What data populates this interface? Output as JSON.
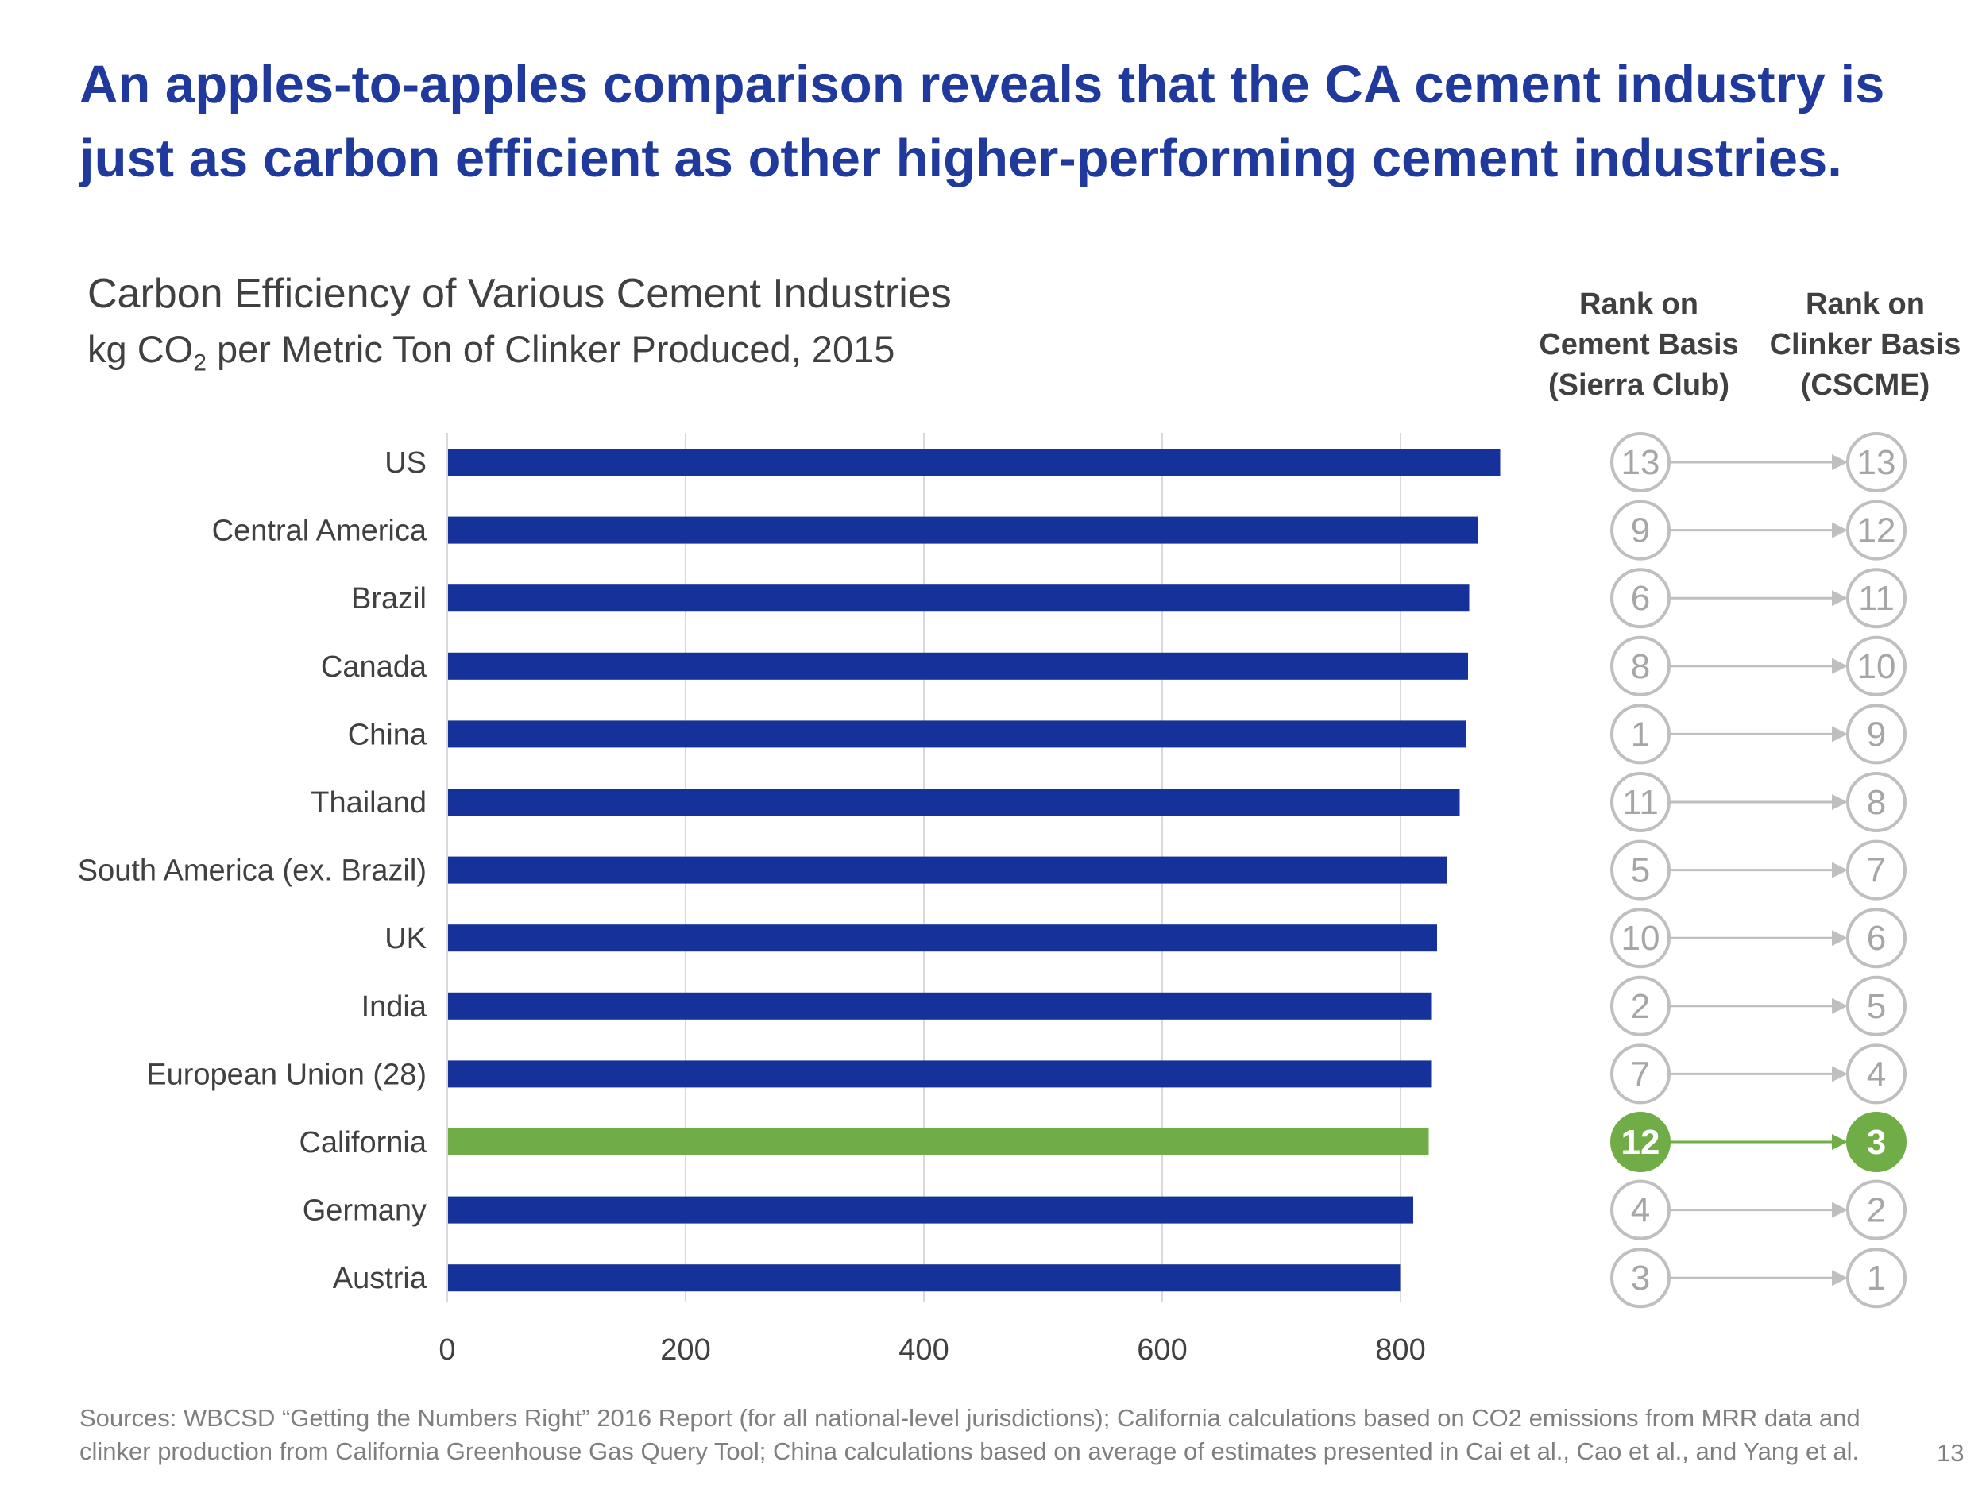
{
  "headline": {
    "line1": "An apples-to-apples comparison reveals that the CA cement industry is",
    "line2": "just as carbon efficient as other higher-performing cement industries."
  },
  "chart_data": {
    "type": "bar",
    "orientation": "horizontal",
    "title": "Carbon Efficiency of Various Cement Industries",
    "subtitle_prefix": "kg CO",
    "subtitle_sub": "2",
    "subtitle_suffix": " per Metric Ton of Clinker Produced, 2015",
    "categories": [
      "US",
      "Central America",
      "Brazil",
      "Canada",
      "China",
      "Thailand",
      "South America (ex. Brazil)",
      "UK",
      "India",
      "European Union (28)",
      "California",
      "Germany",
      "Austria"
    ],
    "values": [
      883,
      864,
      857,
      856,
      854,
      849,
      838,
      830,
      825,
      825,
      823,
      810,
      799
    ],
    "highlight_category": "California",
    "x_ticks": [
      0,
      200,
      400,
      600,
      800
    ],
    "xlim": [
      0,
      900
    ],
    "grid": true,
    "legend": "none",
    "ranks": {
      "cement_header": [
        "Rank on",
        "Cement Basis",
        "(Sierra Club)"
      ],
      "clinker_header": [
        "Rank on",
        "Clinker Basis",
        "(CSCME)"
      ],
      "cement_basis": [
        13,
        9,
        6,
        8,
        1,
        11,
        5,
        10,
        2,
        7,
        12,
        4,
        3
      ],
      "clinker_basis": [
        13,
        12,
        11,
        10,
        9,
        8,
        7,
        6,
        5,
        4,
        3,
        2,
        1
      ]
    }
  },
  "colors": {
    "headline": "#1F3A9C",
    "bar": "#15329A",
    "highlight": "#70AD47",
    "text": "#404040",
    "muted": "#7F7F7F",
    "grid": "#D9D9D9",
    "rank_outline": "#BFBFBF",
    "rank_text": "#A6A6A6"
  },
  "footer": {
    "sources_line1": "Sources: WBCSD “Getting the Numbers Right” 2016 Report (for all national-level jurisdictions); California calculations based on CO2 emissions from MRR data and",
    "sources_line2": "clinker production from California Greenhouse Gas Query Tool; China calculations based on average of estimates presented in Cai et al., Cao et al., and Yang et al.",
    "page_number": "13"
  }
}
